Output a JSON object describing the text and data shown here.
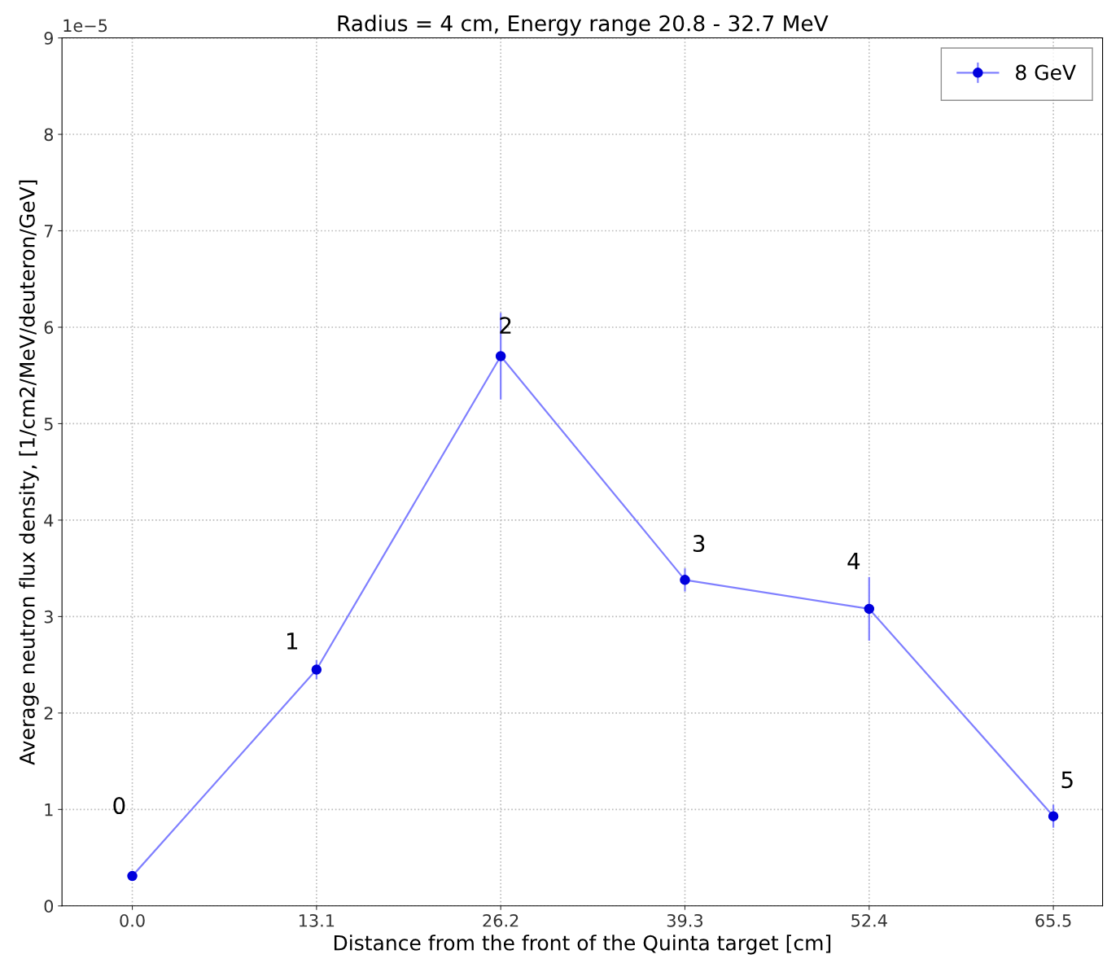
{
  "chart_data": {
    "type": "line",
    "title": "Radius = 4 cm, Energy range 20.8 - 32.7 MeV",
    "xlabel": "Distance from the front of the Quinta target [cm]",
    "ylabel": "Average neutron flux density, [1/cm2/MeV/deuteron/GeV]",
    "x": [
      0.0,
      13.1,
      26.2,
      39.3,
      52.4,
      65.5
    ],
    "series": [
      {
        "name": "8 GeV",
        "color": "#0000dd",
        "values": [
          0.31,
          2.45,
          5.7,
          3.38,
          3.08,
          0.93
        ],
        "errors": [
          0.05,
          0.1,
          0.45,
          0.12,
          0.33,
          0.12
        ]
      }
    ],
    "xlim": [
      -5,
      69
    ],
    "xticks": [
      {
        "value": 0,
        "label": "0.0"
      },
      13.1,
      26.2,
      39.3,
      52.4,
      65.5
    ],
    "ylim": [
      0,
      9
    ],
    "yticks": [
      0,
      1,
      2,
      3,
      4,
      5,
      6,
      7,
      8,
      9
    ],
    "annotations": [
      "1e−5",
      {
        "text": "0",
        "x": 0.0,
        "y": 0.31
      },
      {
        "text": "1",
        "x": 13.1,
        "y": 2.45
      },
      {
        "text": "2",
        "x": 26.2,
        "y": 5.7
      },
      {
        "text": "3",
        "x": 39.3,
        "y": 3.38
      },
      {
        "text": "4",
        "x": 52.4,
        "y": 3.08
      },
      {
        "text": "5",
        "x": 65.5,
        "y": 0.93
      }
    ],
    "grid": true,
    "legend": "top right",
    "marker": "circle",
    "line_style": "solid"
  }
}
